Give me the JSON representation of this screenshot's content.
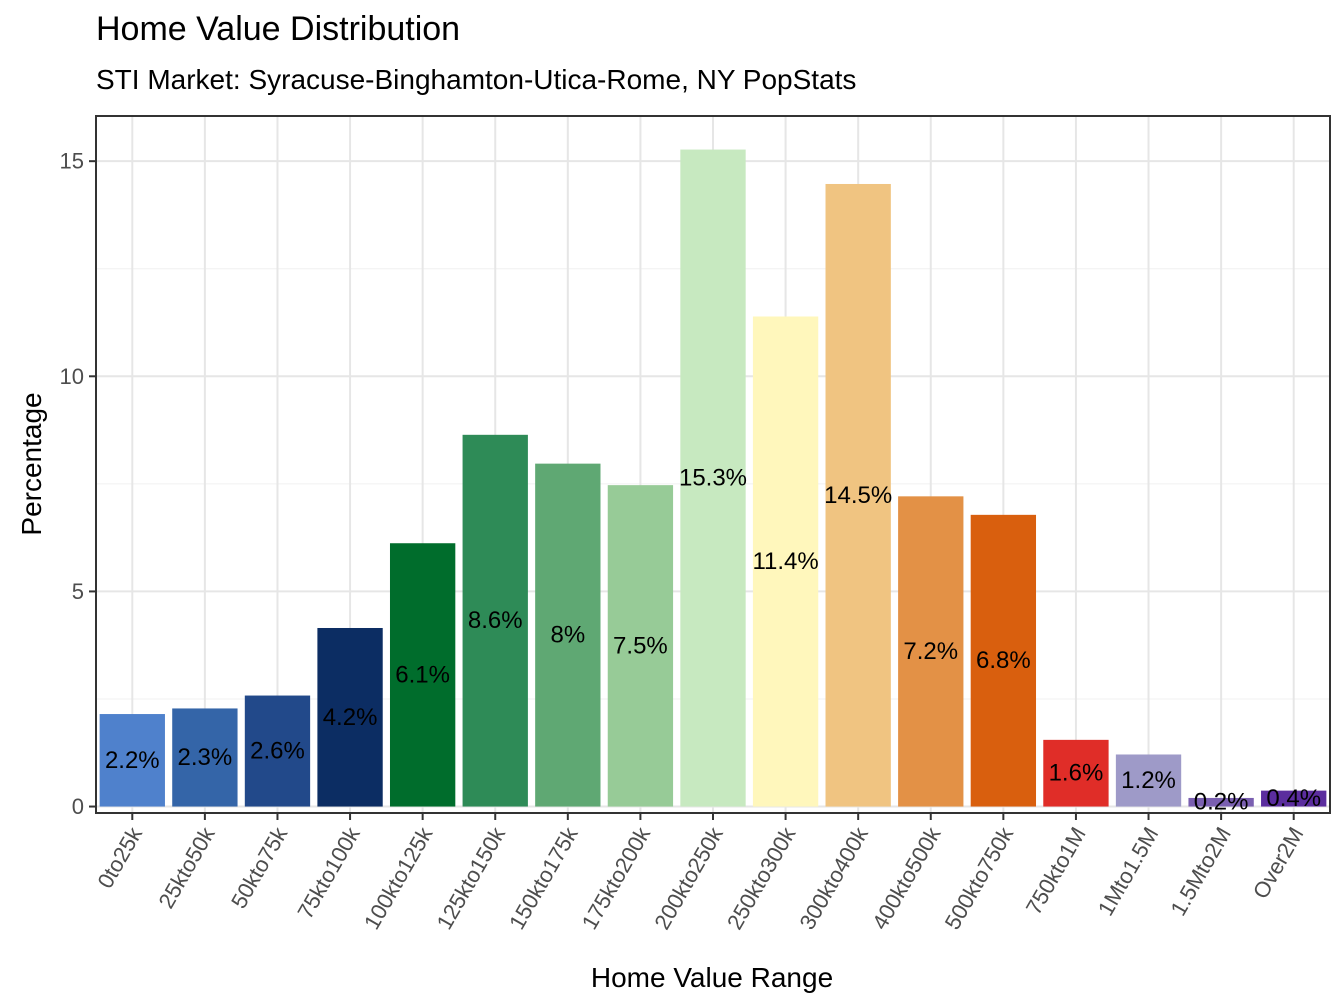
{
  "chart_data": {
    "type": "bar",
    "title": "Home Value Distribution",
    "subtitle": "STI Market: Syracuse-Binghamton-Utica-Rome, NY PopStats",
    "xlabel": "Home Value Range",
    "ylabel": "Percentage",
    "ylim": [
      -0.15,
      16.05
    ],
    "yticks": [
      0,
      5,
      10,
      15
    ],
    "grid": true,
    "categories": [
      "0to25k",
      "25kto50k",
      "50kto75k",
      "75kto100k",
      "100kto125k",
      "125kto150k",
      "150kto175k",
      "175kto200k",
      "200kto250k",
      "250kto300k",
      "300kto400k",
      "400kto500k",
      "500kto750k",
      "750kto1M",
      "1Mto1.5M",
      "1.5Mto2M",
      "Over2M"
    ],
    "values": [
      2.15,
      2.28,
      2.58,
      4.15,
      6.12,
      8.64,
      7.97,
      7.47,
      15.27,
      11.39,
      14.47,
      7.21,
      6.78,
      1.55,
      1.21,
      0.2,
      0.37
    ],
    "labels": [
      "2.2%",
      "2.3%",
      "2.6%",
      "4.2%",
      "6.1%",
      "8.6%",
      "8%",
      "7.5%",
      "15.3%",
      "11.4%",
      "14.5%",
      "7.2%",
      "6.8%",
      "1.6%",
      "1.2%",
      "0.2%",
      "0.4%"
    ],
    "colors": [
      "#4f81cc",
      "#3465a8",
      "#22498a",
      "#0c2d63",
      "#006d2c",
      "#2e8b57",
      "#5fa873",
      "#97cb97",
      "#c7e9c0",
      "#fff7bc",
      "#f0c481",
      "#e39146",
      "#d95f0e",
      "#e02d28",
      "#9e9ac8",
      "#7a5fb0",
      "#5b2d9e"
    ]
  }
}
